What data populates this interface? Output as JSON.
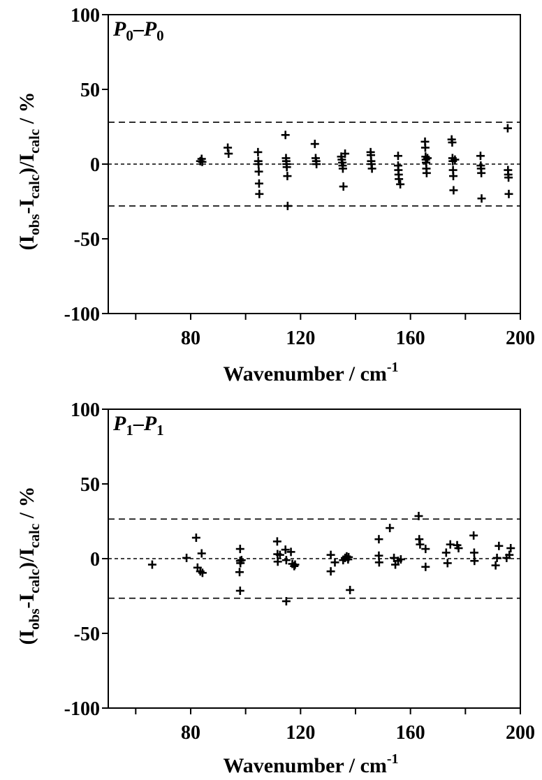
{
  "chart_data": [
    {
      "type": "scatter",
      "panel_label": {
        "base": "P",
        "sub1": "0",
        "dash": "–",
        "sub2": "0"
      },
      "xlabel": "Wavenumber / cm",
      "xlabel_sup": "-1",
      "ylabel": {
        "open": "(I",
        "obs": "obs",
        "mid": "-I",
        "calc": "calc",
        "div": ")/I",
        "calc2": "calc",
        "tail": " / %"
      },
      "xlim": [
        50,
        200
      ],
      "ylim": [
        -100,
        100
      ],
      "xticks": [
        60,
        80,
        100,
        120,
        140,
        160,
        180,
        200
      ],
      "xticklabels": [
        "80",
        "120",
        "160",
        "200"
      ],
      "xticklabel_values": [
        80,
        120,
        160,
        200
      ],
      "yticks": [
        -100,
        -50,
        0,
        50,
        100
      ],
      "yticklabels": [
        "-100",
        "-50",
        "0",
        "50",
        "100"
      ],
      "reference_lines": [
        {
          "y": 28,
          "style": "dashed"
        },
        {
          "y": 0,
          "style": "dotted"
        },
        {
          "y": -28,
          "style": "dashed"
        }
      ],
      "points": [
        [
          83.5,
          2
        ],
        [
          84,
          3.5
        ],
        [
          84.2,
          1.5
        ],
        [
          93.5,
          11
        ],
        [
          93.8,
          7
        ],
        [
          104.5,
          8
        ],
        [
          104.6,
          2
        ],
        [
          104.7,
          0
        ],
        [
          104.8,
          -5
        ],
        [
          104.9,
          -13
        ],
        [
          105,
          -20
        ],
        [
          114.5,
          19.5
        ],
        [
          114.7,
          4
        ],
        [
          114.8,
          2
        ],
        [
          114.9,
          0
        ],
        [
          115,
          -2
        ],
        [
          115.2,
          -8
        ],
        [
          115.3,
          -28
        ],
        [
          125.2,
          13.5
        ],
        [
          125.5,
          4
        ],
        [
          125.7,
          2
        ],
        [
          125.8,
          0
        ],
        [
          134.8,
          5
        ],
        [
          135,
          3
        ],
        [
          135.2,
          1
        ],
        [
          135.3,
          -1
        ],
        [
          135.4,
          -3
        ],
        [
          135.6,
          -15
        ],
        [
          136.2,
          7
        ],
        [
          145.5,
          8
        ],
        [
          145.6,
          6
        ],
        [
          145.7,
          2
        ],
        [
          145.8,
          0
        ],
        [
          146,
          -3
        ],
        [
          155.5,
          5.5
        ],
        [
          155.5,
          -1
        ],
        [
          155.6,
          -4
        ],
        [
          155.7,
          -7
        ],
        [
          155.8,
          -10
        ],
        [
          156.3,
          -13.5
        ],
        [
          165.3,
          15
        ],
        [
          165.4,
          11
        ],
        [
          165.5,
          5
        ],
        [
          165.6,
          3
        ],
        [
          165.7,
          1
        ],
        [
          165.8,
          -3
        ],
        [
          165.9,
          -6
        ],
        [
          166.2,
          4
        ],
        [
          175,
          16.5
        ],
        [
          175.2,
          14.5
        ],
        [
          175.3,
          4
        ],
        [
          175.4,
          2
        ],
        [
          175.5,
          -4
        ],
        [
          175.6,
          -8
        ],
        [
          175.7,
          -17.5
        ],
        [
          176.2,
          3
        ],
        [
          185.5,
          5.5
        ],
        [
          185.6,
          -1
        ],
        [
          185.7,
          -3
        ],
        [
          185.8,
          -6
        ],
        [
          185.9,
          -23
        ],
        [
          195.4,
          24
        ],
        [
          195.5,
          -4
        ],
        [
          195.6,
          -7
        ],
        [
          195.7,
          -9
        ],
        [
          195.8,
          -20
        ]
      ]
    },
    {
      "type": "scatter",
      "panel_label": {
        "base": "P",
        "sub1": "1",
        "dash": "–",
        "sub2": "1"
      },
      "xlabel": "Wavenumber / cm",
      "xlabel_sup": "-1",
      "ylabel": {
        "open": "(I",
        "obs": "obs",
        "mid": "-I",
        "calc": "calc",
        "div": ")/I",
        "calc2": "calc",
        "tail": " / %"
      },
      "xlim": [
        50,
        200
      ],
      "ylim": [
        -100,
        100
      ],
      "xticks": [
        60,
        80,
        100,
        120,
        140,
        160,
        180,
        200
      ],
      "xticklabels": [
        "80",
        "120",
        "160",
        "200"
      ],
      "xticklabel_values": [
        80,
        120,
        160,
        200
      ],
      "yticks": [
        -100,
        -50,
        0,
        50,
        100
      ],
      "yticklabels": [
        "-100",
        "-50",
        "0",
        "50",
        "100"
      ],
      "reference_lines": [
        {
          "y": 26.5,
          "style": "dashed"
        },
        {
          "y": 0,
          "style": "dotted"
        },
        {
          "y": -26.5,
          "style": "dashed"
        }
      ],
      "points": [
        [
          66,
          -4
        ],
        [
          78.5,
          0.5
        ],
        [
          82,
          14
        ],
        [
          82.5,
          -6
        ],
        [
          83.5,
          -8.5
        ],
        [
          84,
          3.5
        ],
        [
          84.3,
          -9.5
        ],
        [
          98,
          6.5
        ],
        [
          98,
          -1.5
        ],
        [
          98.1,
          -3
        ],
        [
          97.8,
          -9
        ],
        [
          98,
          -21.5
        ],
        [
          98.5,
          -1
        ],
        [
          111.5,
          11.5
        ],
        [
          111.6,
          3
        ],
        [
          111.7,
          -2
        ],
        [
          112.5,
          2.5
        ],
        [
          114.5,
          6
        ],
        [
          114.8,
          -1
        ],
        [
          114.8,
          -28.5
        ],
        [
          116.5,
          4.5
        ],
        [
          117,
          -3.5
        ],
        [
          117.7,
          -5
        ],
        [
          118,
          -4
        ],
        [
          131,
          2.5
        ],
        [
          131,
          -8.5
        ],
        [
          132.5,
          -2.5
        ],
        [
          135.5,
          -1
        ],
        [
          136.2,
          0.5
        ],
        [
          136.8,
          1.5
        ],
        [
          137.3,
          -0.5
        ],
        [
          137.5,
          1
        ],
        [
          138,
          -21
        ],
        [
          148.5,
          13
        ],
        [
          148.5,
          2
        ],
        [
          148.6,
          -2.5
        ],
        [
          152.5,
          20.5
        ],
        [
          154,
          0.5
        ],
        [
          154.5,
          -4
        ],
        [
          155.5,
          -1.5
        ],
        [
          156.5,
          -0.5
        ],
        [
          163,
          28.5
        ],
        [
          163.2,
          13
        ],
        [
          163.5,
          9.5
        ],
        [
          165.5,
          6.5
        ],
        [
          165.5,
          -5.5
        ],
        [
          173,
          4
        ],
        [
          173.5,
          -3
        ],
        [
          174.5,
          9.5
        ],
        [
          177,
          9
        ],
        [
          177.5,
          7
        ],
        [
          183,
          15.5
        ],
        [
          183.2,
          4
        ],
        [
          183.3,
          -1.5
        ],
        [
          191,
          -4.5
        ],
        [
          191.5,
          0.5
        ],
        [
          192.2,
          8.5
        ],
        [
          195,
          0.5
        ],
        [
          196,
          2.5
        ],
        [
          196.5,
          7
        ]
      ]
    }
  ]
}
